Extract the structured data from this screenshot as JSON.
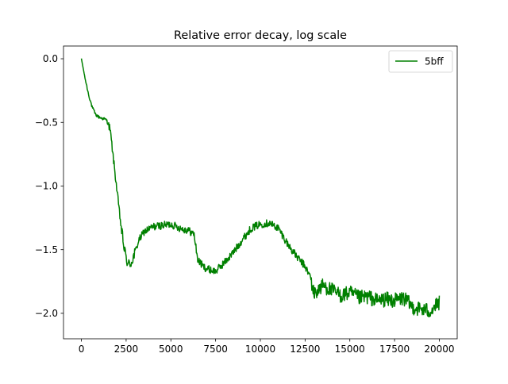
{
  "chart_data": {
    "type": "line",
    "title": "Relative error decay, log scale",
    "xlabel": "",
    "ylabel": "",
    "xlim": [
      -1000,
      21000
    ],
    "ylim": [
      -2.2,
      0.1
    ],
    "x_ticks": [
      0,
      2500,
      5000,
      7500,
      10000,
      12500,
      15000,
      17500,
      20000
    ],
    "y_ticks": [
      0.0,
      -0.5,
      -1.0,
      -1.5,
      -2.0
    ],
    "x_tick_labels": [
      "0",
      "2500",
      "5000",
      "7500",
      "10000",
      "12500",
      "15000",
      "17500",
      "20000"
    ],
    "y_tick_labels": [
      "0.0",
      "−0.5",
      "−1.0",
      "−1.5",
      "−2.0"
    ],
    "grid": false,
    "legend_position": "top-right",
    "series": [
      {
        "name": "5bff",
        "color": "#008000",
        "x": [
          0,
          200,
          400,
          600,
          800,
          1000,
          1200,
          1400,
          1600,
          1800,
          2000,
          2200,
          2400,
          2600,
          2800,
          3000,
          3200,
          3500,
          4000,
          4500,
          5000,
          5500,
          6000,
          6300,
          6500,
          6800,
          7000,
          7500,
          8000,
          8500,
          9000,
          9500,
          10000,
          10500,
          11000,
          11500,
          12000,
          12500,
          12800,
          13000,
          13500,
          14000,
          14500,
          15000,
          15500,
          16000,
          16500,
          17000,
          17500,
          18000,
          18500,
          19000,
          19500,
          20000
        ],
        "y": [
          0.0,
          -0.15,
          -0.28,
          -0.38,
          -0.44,
          -0.46,
          -0.47,
          -0.48,
          -0.55,
          -0.8,
          -1.05,
          -1.3,
          -1.5,
          -1.62,
          -1.6,
          -1.52,
          -1.43,
          -1.36,
          -1.32,
          -1.31,
          -1.3,
          -1.33,
          -1.35,
          -1.38,
          -1.58,
          -1.63,
          -1.65,
          -1.67,
          -1.6,
          -1.52,
          -1.42,
          -1.33,
          -1.3,
          -1.29,
          -1.33,
          -1.45,
          -1.55,
          -1.63,
          -1.72,
          -1.85,
          -1.78,
          -1.82,
          -1.86,
          -1.84,
          -1.88,
          -1.87,
          -1.9,
          -1.89,
          -1.9,
          -1.88,
          -1.95,
          -1.97,
          -1.98,
          -1.92
        ]
      }
    ]
  }
}
